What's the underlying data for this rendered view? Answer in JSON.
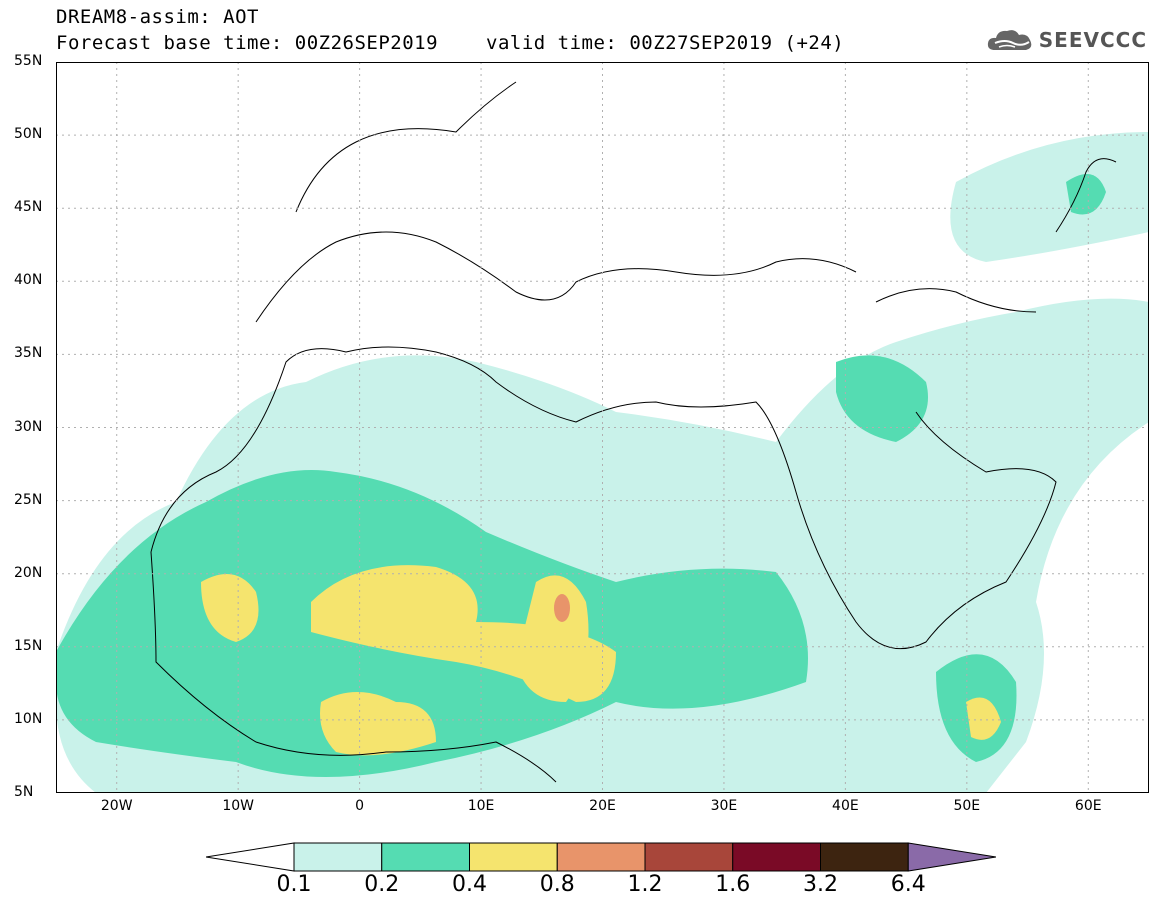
{
  "header": {
    "title_line1": "DREAM8-assim: AOT",
    "base_time": "Forecast base time: 00Z26SEP2019",
    "valid_time": "valid time: 00Z27SEP2019 (+24)",
    "logo_text": "SEEVCCC",
    "logo_icon": "cloud-icon"
  },
  "map": {
    "lat_labels": [
      "55N",
      "50N",
      "45N",
      "40N",
      "35N",
      "30N",
      "25N",
      "20N",
      "15N",
      "10N",
      "5N"
    ],
    "lon_labels": [
      "20W",
      "10W",
      "0",
      "10E",
      "20E",
      "30E",
      "40E",
      "50E",
      "60E"
    ],
    "lat_range": [
      5,
      55
    ],
    "lon_range": [
      -25,
      65
    ],
    "grid": true
  },
  "colorbar": {
    "labels": [
      "0.1",
      "0.2",
      "0.4",
      "0.8",
      "1.2",
      "1.6",
      "3.2",
      "6.4"
    ],
    "colors": [
      "#ffffff",
      "#c9f2ea",
      "#55dcb2",
      "#f5e46e",
      "#e8946a",
      "#a8463a",
      "#7a0a26",
      "#3d2410",
      "#8a6aa8"
    ]
  }
}
